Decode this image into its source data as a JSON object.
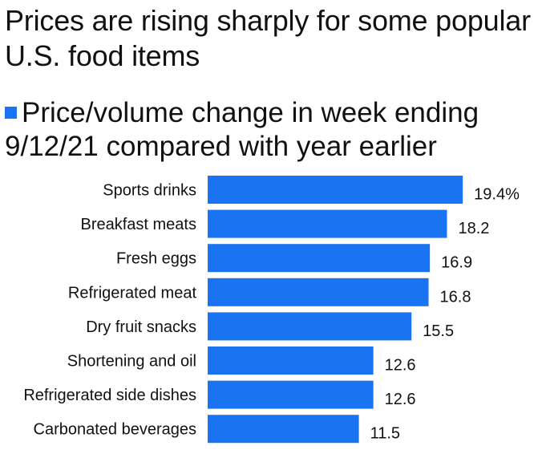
{
  "chart_data": {
    "type": "bar",
    "orientation": "horizontal",
    "title": "Prices are rising sharply for some popular U.S. food items",
    "legend": "Price/volume change in week ending 9/12/21 compared with year earlier",
    "color": "#1a73f0",
    "categories": [
      "Sports drinks",
      "Breakfast meats",
      "Fresh eggs",
      "Refrigerated meat",
      "Dry fruit snacks",
      "Shortening and oil",
      "Refrigerated side dishes",
      "Carbonated beverages"
    ],
    "values": [
      19.4,
      18.2,
      16.9,
      16.8,
      15.5,
      12.6,
      12.6,
      11.5
    ],
    "value_labels": [
      "19.4%",
      "18.2",
      "16.9",
      "16.8",
      "15.5",
      "12.6",
      "12.6",
      "11.5"
    ],
    "grid": false
  }
}
